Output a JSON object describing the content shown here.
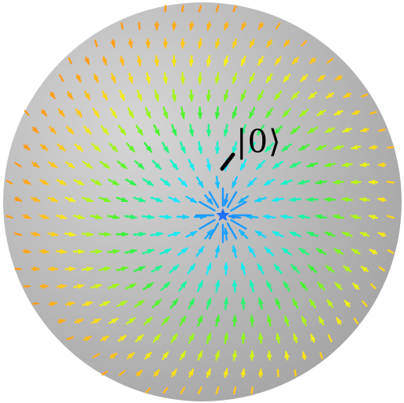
{
  "figure": {
    "state_label": "|0⟩"
  },
  "style": {
    "sphere_inner": "#d6d6d6",
    "sphere_outer": "#a6a6a6",
    "field_colors": [
      "#1f6fff",
      "#18b0ff",
      "#18e8ff",
      "#19f5b8",
      "#3af23a",
      "#9cf51a",
      "#f2f01a",
      "#ffc21a",
      "#ff9d1a"
    ],
    "marker_color": "#000000",
    "center_color": "#1f6fff"
  }
}
